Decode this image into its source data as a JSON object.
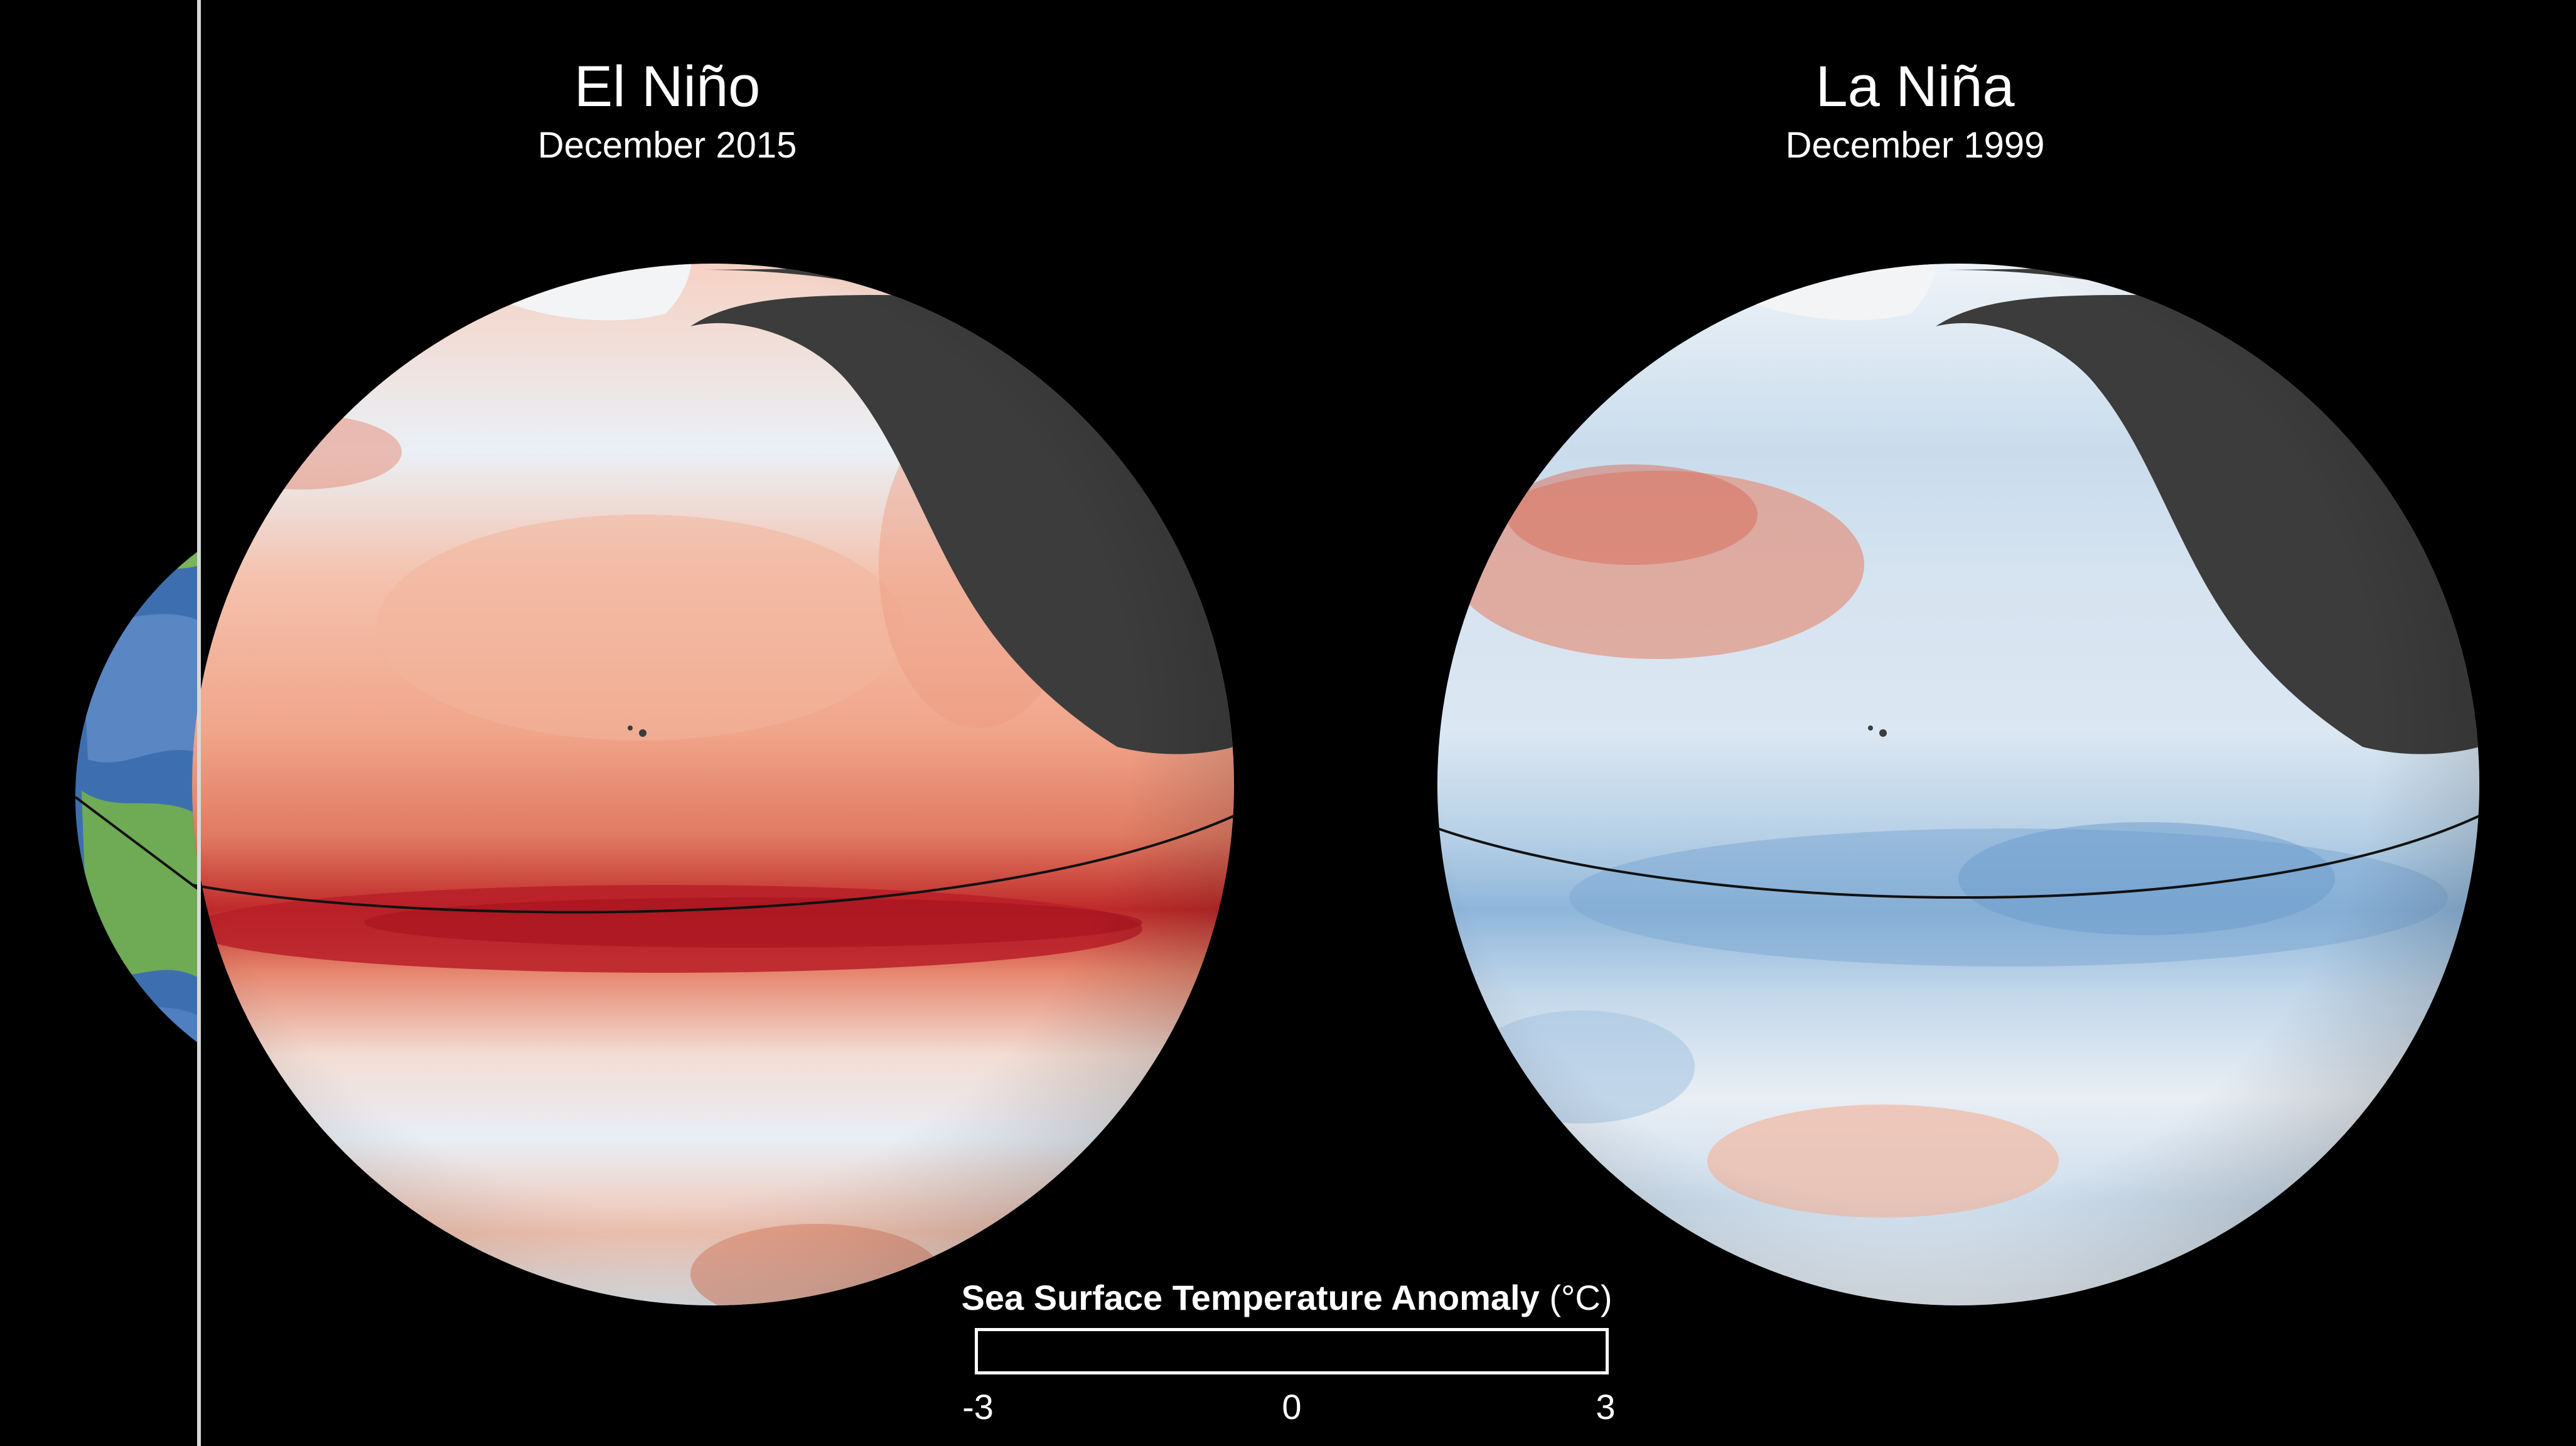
{
  "panels": [
    {
      "title": "El Niño",
      "subtitle": "December 2015",
      "anomaly": "warm"
    },
    {
      "title": "La Niña",
      "subtitle": "December 1999",
      "anomaly": "cool"
    }
  ],
  "legend": {
    "title": "Sea Surface Temperature Anomaly",
    "unit": "(°C)",
    "min_label": "-3",
    "mid_label": "0",
    "max_label": "3",
    "min_value": -3,
    "max_value": 3,
    "colors": {
      "cold": "#2166ac",
      "cool": "#92c5de",
      "neutral": "#f7f7f7",
      "warm": "#f4a582",
      "hot": "#b2182b"
    }
  },
  "colors": {
    "background": "#000000",
    "land": "#3c3c3c",
    "ice": "#f2f4f6",
    "divider": "#d8d8d8",
    "equator": "#111111"
  }
}
